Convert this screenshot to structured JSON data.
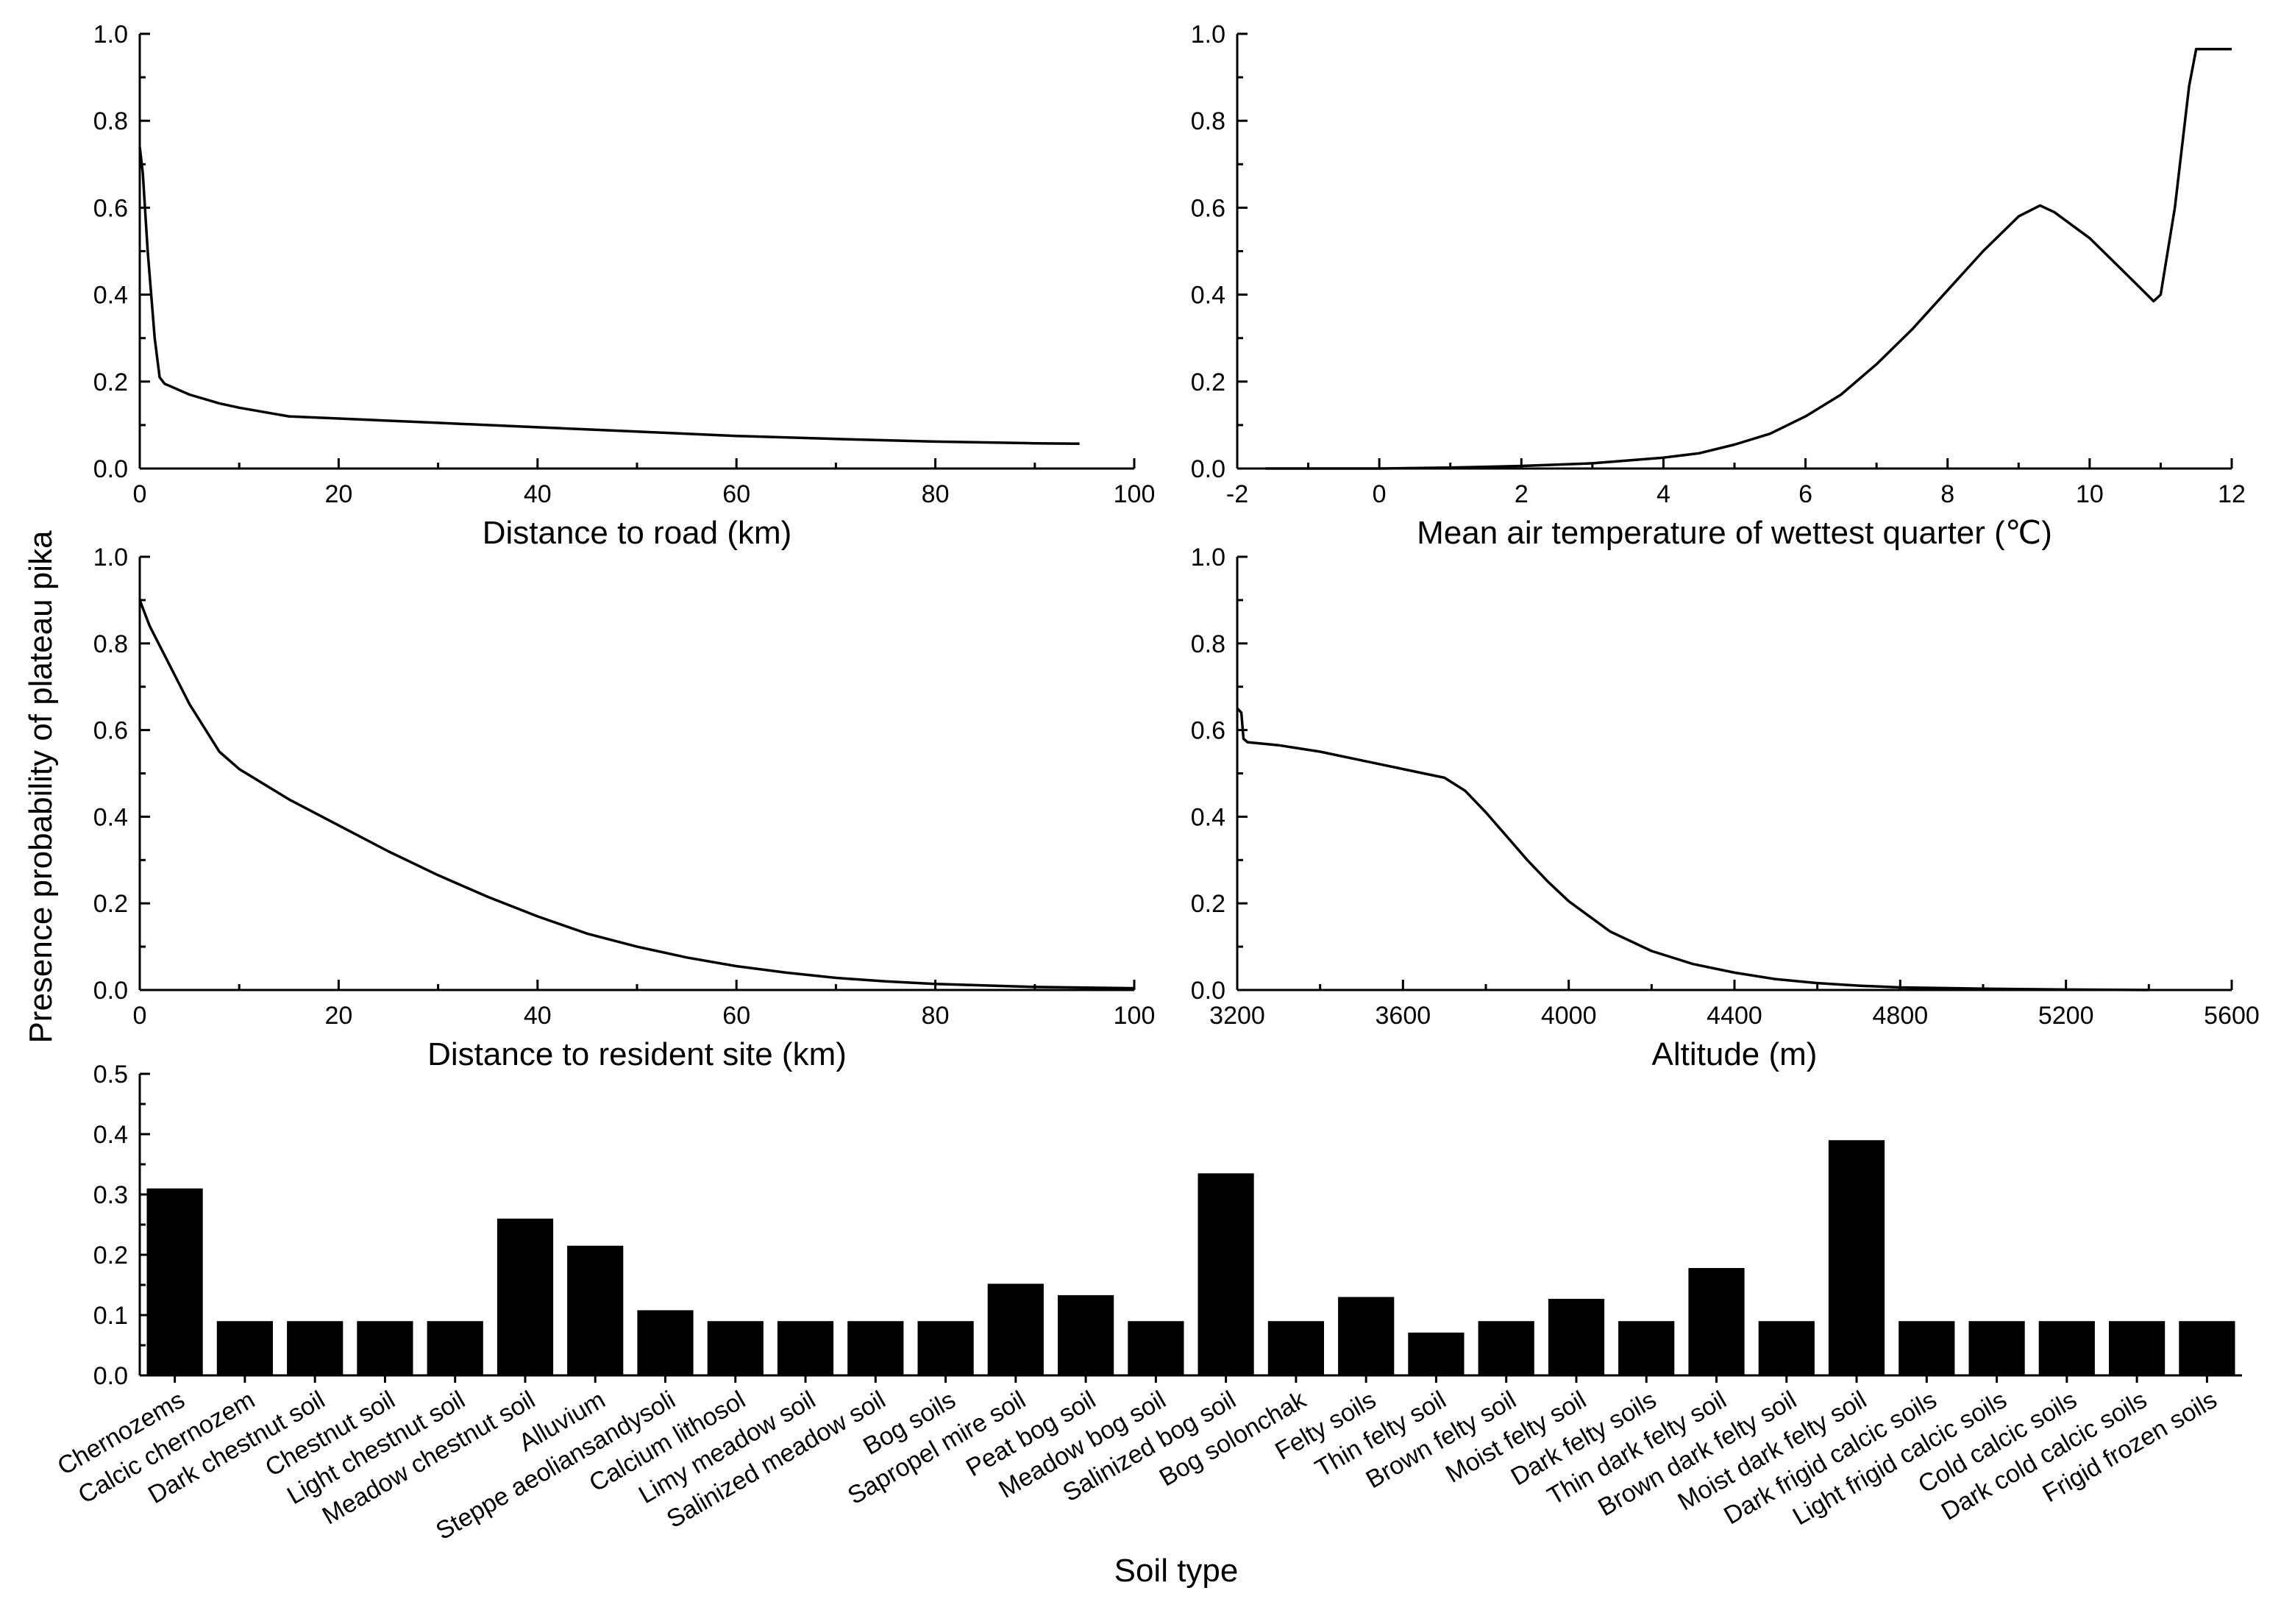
{
  "figure": {
    "shared_ylabel": "Presence probability of plateau pika"
  },
  "chart_data": [
    {
      "id": "road",
      "type": "line",
      "xlabel": "Distance to road (km)",
      "xlim": [
        0,
        100
      ],
      "ylim": [
        0,
        1.0
      ],
      "xticks": [
        0,
        20,
        40,
        60,
        80,
        100
      ],
      "yticks": [
        0.0,
        0.2,
        0.4,
        0.6,
        0.8,
        1.0
      ],
      "xtick_labels": [
        "0",
        "20",
        "40",
        "60",
        "80",
        "100"
      ],
      "ytick_labels": [
        "0.0",
        "0.2",
        "0.4",
        "0.6",
        "0.8",
        "1.0"
      ],
      "x": [
        0,
        0.3,
        0.8,
        1.5,
        2,
        2.5,
        3,
        5,
        8,
        10,
        15,
        20,
        30,
        40,
        50,
        60,
        70,
        80,
        90,
        94.5
      ],
      "y": [
        0.74,
        0.68,
        0.5,
        0.3,
        0.21,
        0.195,
        0.19,
        0.17,
        0.15,
        0.14,
        0.12,
        0.115,
        0.105,
        0.095,
        0.085,
        0.075,
        0.068,
        0.062,
        0.058,
        0.057
      ]
    },
    {
      "id": "temperature",
      "type": "line",
      "xlabel": "Mean air temperature of wettest quarter (℃)",
      "xlim": [
        -2,
        12
      ],
      "ylim": [
        0,
        1.0
      ],
      "xticks": [
        -2,
        0,
        2,
        4,
        6,
        8,
        10,
        12
      ],
      "yticks": [
        0.0,
        0.2,
        0.4,
        0.6,
        0.8,
        1.0
      ],
      "xtick_labels": [
        "-2",
        "0",
        "2",
        "4",
        "6",
        "8",
        "10",
        "12"
      ],
      "ytick_labels": [
        "0.0",
        "0.2",
        "0.4",
        "0.6",
        "0.8",
        "1.0"
      ],
      "x": [
        -1.6,
        0,
        1,
        2,
        3,
        4,
        4.5,
        5,
        5.5,
        6,
        6.5,
        7,
        7.5,
        8,
        8.5,
        9,
        9.3,
        9.5,
        10,
        10.5,
        10.9,
        11,
        11.2,
        11.4,
        11.5,
        12
      ],
      "y": [
        0.0,
        0.0,
        0.002,
        0.006,
        0.012,
        0.025,
        0.035,
        0.055,
        0.08,
        0.12,
        0.17,
        0.24,
        0.32,
        0.41,
        0.5,
        0.58,
        0.605,
        0.59,
        0.53,
        0.45,
        0.385,
        0.4,
        0.6,
        0.88,
        0.965,
        0.965
      ]
    },
    {
      "id": "resident",
      "type": "line",
      "xlabel": "Distance to resident site (km)",
      "xlim": [
        0,
        100
      ],
      "ylim": [
        0,
        1.0
      ],
      "xticks": [
        0,
        20,
        40,
        60,
        80,
        100
      ],
      "yticks": [
        0.0,
        0.2,
        0.4,
        0.6,
        0.8,
        1.0
      ],
      "xtick_labels": [
        "0",
        "20",
        "40",
        "60",
        "80",
        "100"
      ],
      "ytick_labels": [
        "0.0",
        "0.2",
        "0.4",
        "0.6",
        "0.8",
        "1.0"
      ],
      "x": [
        0,
        1,
        3,
        5,
        8,
        10,
        15,
        20,
        25,
        30,
        35,
        40,
        45,
        50,
        55,
        60,
        65,
        70,
        75,
        80,
        90,
        100
      ],
      "y": [
        0.9,
        0.84,
        0.75,
        0.66,
        0.55,
        0.51,
        0.44,
        0.38,
        0.32,
        0.265,
        0.215,
        0.17,
        0.13,
        0.1,
        0.075,
        0.055,
        0.04,
        0.028,
        0.02,
        0.014,
        0.007,
        0.004
      ]
    },
    {
      "id": "altitude",
      "type": "line",
      "xlabel": "Altitude (m)",
      "xlim": [
        3200,
        5600
      ],
      "ylim": [
        0,
        1.0
      ],
      "xticks": [
        3200,
        3600,
        4000,
        4400,
        4800,
        5200,
        5600
      ],
      "yticks": [
        0.0,
        0.2,
        0.4,
        0.6,
        0.8,
        1.0
      ],
      "xtick_labels": [
        "3200",
        "3600",
        "4000",
        "4400",
        "4800",
        "5200",
        "5600"
      ],
      "ytick_labels": [
        "0.0",
        "0.2",
        "0.4",
        "0.6",
        "0.8",
        "1.0"
      ],
      "x": [
        3200,
        3210,
        3215,
        3225,
        3300,
        3400,
        3500,
        3600,
        3700,
        3750,
        3800,
        3850,
        3900,
        3950,
        4000,
        4100,
        4200,
        4300,
        4400,
        4500,
        4600,
        4700,
        4800,
        5000,
        5200,
        5400
      ],
      "y": [
        0.65,
        0.64,
        0.58,
        0.572,
        0.565,
        0.55,
        0.53,
        0.51,
        0.49,
        0.46,
        0.41,
        0.355,
        0.3,
        0.25,
        0.205,
        0.135,
        0.09,
        0.06,
        0.04,
        0.025,
        0.016,
        0.01,
        0.006,
        0.003,
        0.001,
        0.0
      ]
    },
    {
      "id": "soil",
      "type": "bar",
      "xlabel": "Soil type",
      "ylim": [
        0,
        0.5
      ],
      "yticks": [
        0.0,
        0.1,
        0.2,
        0.3,
        0.4,
        0.5
      ],
      "ytick_labels": [
        "0.0",
        "0.1",
        "0.2",
        "0.3",
        "0.4",
        "0.5"
      ],
      "categories": [
        "Chernozems",
        "Calcic chernozem",
        "Dark chestnut soil",
        "Chestnut soil",
        "Light chestnut soil",
        "Meadow chestnut soil",
        "Alluvium",
        "Steppe aeoliansandysoli",
        "Calcium lithosol",
        "Limy meadow soil",
        "Salinized meadow soil",
        "Bog soils",
        "Sapropel mire soil",
        "Peat bog soil",
        "Meadow bog soil",
        "Salinized bog soil",
        "Bog solonchak",
        "Felty soils",
        "Thin felty soil",
        "Brown felty soil",
        "Moist felty soil",
        "Dark felty soils",
        "Thin dark felty soil",
        "Brown dark felty soil",
        "Moist dark felty soil",
        "Dark frigid calcic soils",
        "Light frigid calcic soils",
        "Cold calcic soils",
        "Dark cold calcic soils",
        "Frigid frozen soils"
      ],
      "values": [
        0.31,
        0.09,
        0.09,
        0.09,
        0.09,
        0.26,
        0.215,
        0.108,
        0.09,
        0.09,
        0.09,
        0.09,
        0.152,
        0.133,
        0.09,
        0.335,
        0.09,
        0.13,
        0.071,
        0.09,
        0.127,
        0.09,
        0.178,
        0.09,
        0.39,
        0.09,
        0.09,
        0.09,
        0.09,
        0.09
      ]
    }
  ]
}
